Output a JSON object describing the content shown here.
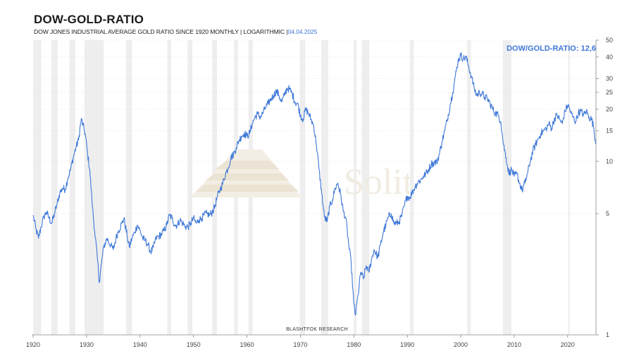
{
  "title": "DOW-GOLD-RATIO",
  "subtitle": {
    "main": "DOW JONES INDUSTRIAL AVERAGE GOLD RATIO SINCE 1920   MONTHLY | LOGARITHMIC |",
    "date": "04.04.2025"
  },
  "watermark": {
    "text": "Solit",
    "icon": "stepped-pyramid-logo"
  },
  "credit": "BLASHTFOK RESEARCH",
  "colors": {
    "line": "#3f78d8",
    "band": "#eeeeee",
    "grid": "#e6e6e6",
    "annot": "#3f78d8"
  },
  "chart_data": {
    "type": "line",
    "title": "DOW-GOLD-RATIO",
    "xlabel": "",
    "ylabel": "",
    "scale": "log",
    "xlim": [
      1920,
      2025.3
    ],
    "ylim": [
      1,
      50
    ],
    "grid": true,
    "y_ticks": [
      1,
      5,
      10,
      15,
      20,
      25,
      30,
      40,
      50
    ],
    "x_ticks": [
      1920,
      1930,
      1940,
      1950,
      1960,
      1970,
      1980,
      1990,
      2000,
      2010,
      2020
    ],
    "annotation": "DOW/GOLD-RATIO: 12,6",
    "recession_bands": [
      [
        1920.0,
        1921.5
      ],
      [
        1923.4,
        1924.6
      ],
      [
        1926.8,
        1927.9
      ],
      [
        1929.6,
        1933.2
      ],
      [
        1937.4,
        1938.5
      ],
      [
        1945.1,
        1945.8
      ],
      [
        1948.9,
        1949.8
      ],
      [
        1953.5,
        1954.4
      ],
      [
        1957.6,
        1958.3
      ],
      [
        1960.3,
        1961.1
      ],
      [
        1969.9,
        1970.9
      ],
      [
        1973.9,
        1975.2
      ],
      [
        1980.0,
        1980.5
      ],
      [
        1981.5,
        1982.9
      ],
      [
        1990.5,
        1991.2
      ],
      [
        2001.2,
        2001.9
      ],
      [
        2007.9,
        2009.5
      ],
      [
        2020.1,
        2020.4
      ]
    ],
    "series": [
      {
        "x": [
          1920.0,
          1920.5,
          1921.0,
          1921.5,
          1922.0,
          1922.5,
          1923.0,
          1923.5,
          1924.0,
          1924.5,
          1925.0,
          1925.5,
          1926.0,
          1926.5,
          1927.0,
          1927.5,
          1928.0,
          1928.5,
          1929.0,
          1929.5,
          1929.8,
          1930.2,
          1930.6,
          1931.0,
          1931.5,
          1932.0,
          1932.4,
          1932.8,
          1933.2,
          1933.8,
          1934.5,
          1935.0,
          1935.5,
          1936.0,
          1936.6,
          1937.0,
          1937.6,
          1938.0,
          1938.5,
          1939.0,
          1939.5,
          1940.0,
          1940.5,
          1941.0,
          1941.5,
          1942.0,
          1942.5,
          1943.0,
          1943.5,
          1944.0,
          1944.5,
          1945.0,
          1945.5,
          1946.0,
          1946.5,
          1947.0,
          1947.5,
          1948.0,
          1948.5,
          1949.0,
          1949.5,
          1950.0,
          1950.5,
          1951.0,
          1951.5,
          1952.0,
          1952.5,
          1953.0,
          1953.5,
          1954.0,
          1954.5,
          1955.0,
          1955.5,
          1956.0,
          1956.5,
          1957.0,
          1957.5,
          1958.0,
          1958.5,
          1959.0,
          1959.5,
          1960.0,
          1960.5,
          1961.0,
          1961.5,
          1962.0,
          1962.5,
          1963.0,
          1963.5,
          1964.0,
          1964.5,
          1965.0,
          1965.5,
          1966.0,
          1966.5,
          1967.0,
          1967.5,
          1968.0,
          1968.5,
          1969.0,
          1969.5,
          1970.0,
          1970.5,
          1971.0,
          1971.5,
          1972.0,
          1972.5,
          1973.0,
          1973.5,
          1974.0,
          1974.5,
          1975.0,
          1975.5,
          1976.0,
          1976.5,
          1977.0,
          1977.5,
          1978.0,
          1978.5,
          1979.0,
          1979.5,
          1980.0,
          1980.3,
          1980.8,
          1981.3,
          1981.8,
          1982.3,
          1982.8,
          1983.3,
          1983.8,
          1984.5,
          1985.0,
          1985.5,
          1986.0,
          1986.5,
          1987.0,
          1987.5,
          1988.0,
          1988.5,
          1989.0,
          1989.5,
          1990.0,
          1990.5,
          1991.0,
          1991.5,
          1992.0,
          1992.5,
          1993.0,
          1993.5,
          1994.0,
          1994.5,
          1995.0,
          1995.5,
          1996.0,
          1996.5,
          1997.0,
          1997.5,
          1998.0,
          1998.5,
          1999.0,
          1999.5,
          2000.0,
          2000.5,
          2001.0,
          2001.5,
          2002.0,
          2002.5,
          2003.0,
          2003.5,
          2004.0,
          2004.5,
          2005.0,
          2005.5,
          2006.0,
          2006.5,
          2007.0,
          2007.5,
          2008.0,
          2008.5,
          2009.0,
          2009.5,
          2010.0,
          2010.5,
          2011.0,
          2011.5,
          2012.0,
          2012.5,
          2013.0,
          2013.5,
          2014.0,
          2014.5,
          2015.0,
          2015.5,
          2016.0,
          2016.5,
          2017.0,
          2017.5,
          2018.0,
          2018.5,
          2019.0,
          2019.5,
          2020.0,
          2020.3,
          2020.6,
          2021.0,
          2021.5,
          2022.0,
          2022.5,
          2023.0,
          2023.5,
          2024.0,
          2024.5,
          2024.9,
          2025.25
        ],
        "y": [
          4.9,
          4.1,
          3.6,
          4.2,
          4.8,
          5.1,
          4.7,
          4.4,
          5.0,
          5.7,
          6.6,
          7.0,
          6.9,
          8.0,
          9.0,
          10.5,
          12.0,
          13.3,
          17.5,
          15.5,
          14.0,
          11.0,
          9.0,
          6.0,
          4.0,
          2.8,
          2.0,
          2.6,
          3.2,
          3.6,
          3.3,
          3.1,
          3.6,
          4.0,
          4.4,
          4.7,
          3.7,
          3.2,
          3.6,
          3.9,
          4.3,
          4.0,
          3.6,
          3.5,
          3.3,
          3.0,
          3.2,
          3.6,
          3.7,
          3.8,
          4.0,
          4.3,
          4.9,
          4.7,
          4.3,
          4.3,
          4.6,
          4.4,
          4.2,
          4.2,
          4.4,
          4.7,
          4.4,
          4.6,
          4.7,
          4.9,
          5.0,
          4.9,
          5.1,
          5.5,
          6.3,
          6.9,
          7.5,
          8.5,
          9.2,
          10.5,
          11.0,
          12.0,
          13.2,
          14.0,
          14.5,
          14.0,
          14.5,
          16.5,
          18.0,
          18.8,
          18.0,
          19.0,
          20.5,
          21.5,
          23.0,
          24.0,
          25.5,
          24.0,
          22.0,
          24.0,
          26.5,
          26.0,
          24.5,
          22.0,
          21.5,
          18.5,
          17.5,
          20.0,
          19.0,
          17.5,
          16.0,
          12.5,
          9.0,
          6.5,
          4.8,
          4.5,
          5.5,
          6.0,
          7.0,
          7.5,
          6.5,
          5.2,
          4.7,
          3.4,
          2.6,
          1.5,
          1.3,
          1.7,
          2.3,
          2.1,
          2.5,
          2.3,
          2.7,
          3.1,
          2.8,
          3.3,
          3.9,
          4.3,
          4.8,
          5.0,
          4.4,
          4.4,
          4.5,
          4.9,
          5.6,
          6.3,
          6.2,
          6.7,
          7.2,
          7.6,
          7.8,
          8.2,
          8.5,
          9.0,
          9.7,
          9.8,
          9.9,
          11.0,
          13.0,
          15.0,
          17.5,
          21.0,
          25.0,
          31.0,
          38.0,
          41.0,
          39.0,
          40.0,
          35.0,
          31.0,
          26.5,
          24.0,
          25.0,
          24.5,
          23.5,
          23.0,
          21.5,
          20.0,
          19.0,
          18.5,
          17.0,
          12.5,
          10.5,
          8.5,
          9.0,
          8.2,
          8.5,
          7.5,
          6.8,
          7.5,
          8.5,
          10.0,
          11.5,
          12.5,
          13.5,
          14.5,
          15.0,
          15.5,
          16.5,
          15.5,
          17.5,
          18.5,
          17.5,
          16.5,
          19.5,
          21.0,
          20.5,
          19.0,
          18.0,
          17.0,
          19.0,
          19.5,
          18.5,
          19.5,
          18.0,
          17.5,
          15.5,
          12.6
        ]
      }
    ]
  }
}
